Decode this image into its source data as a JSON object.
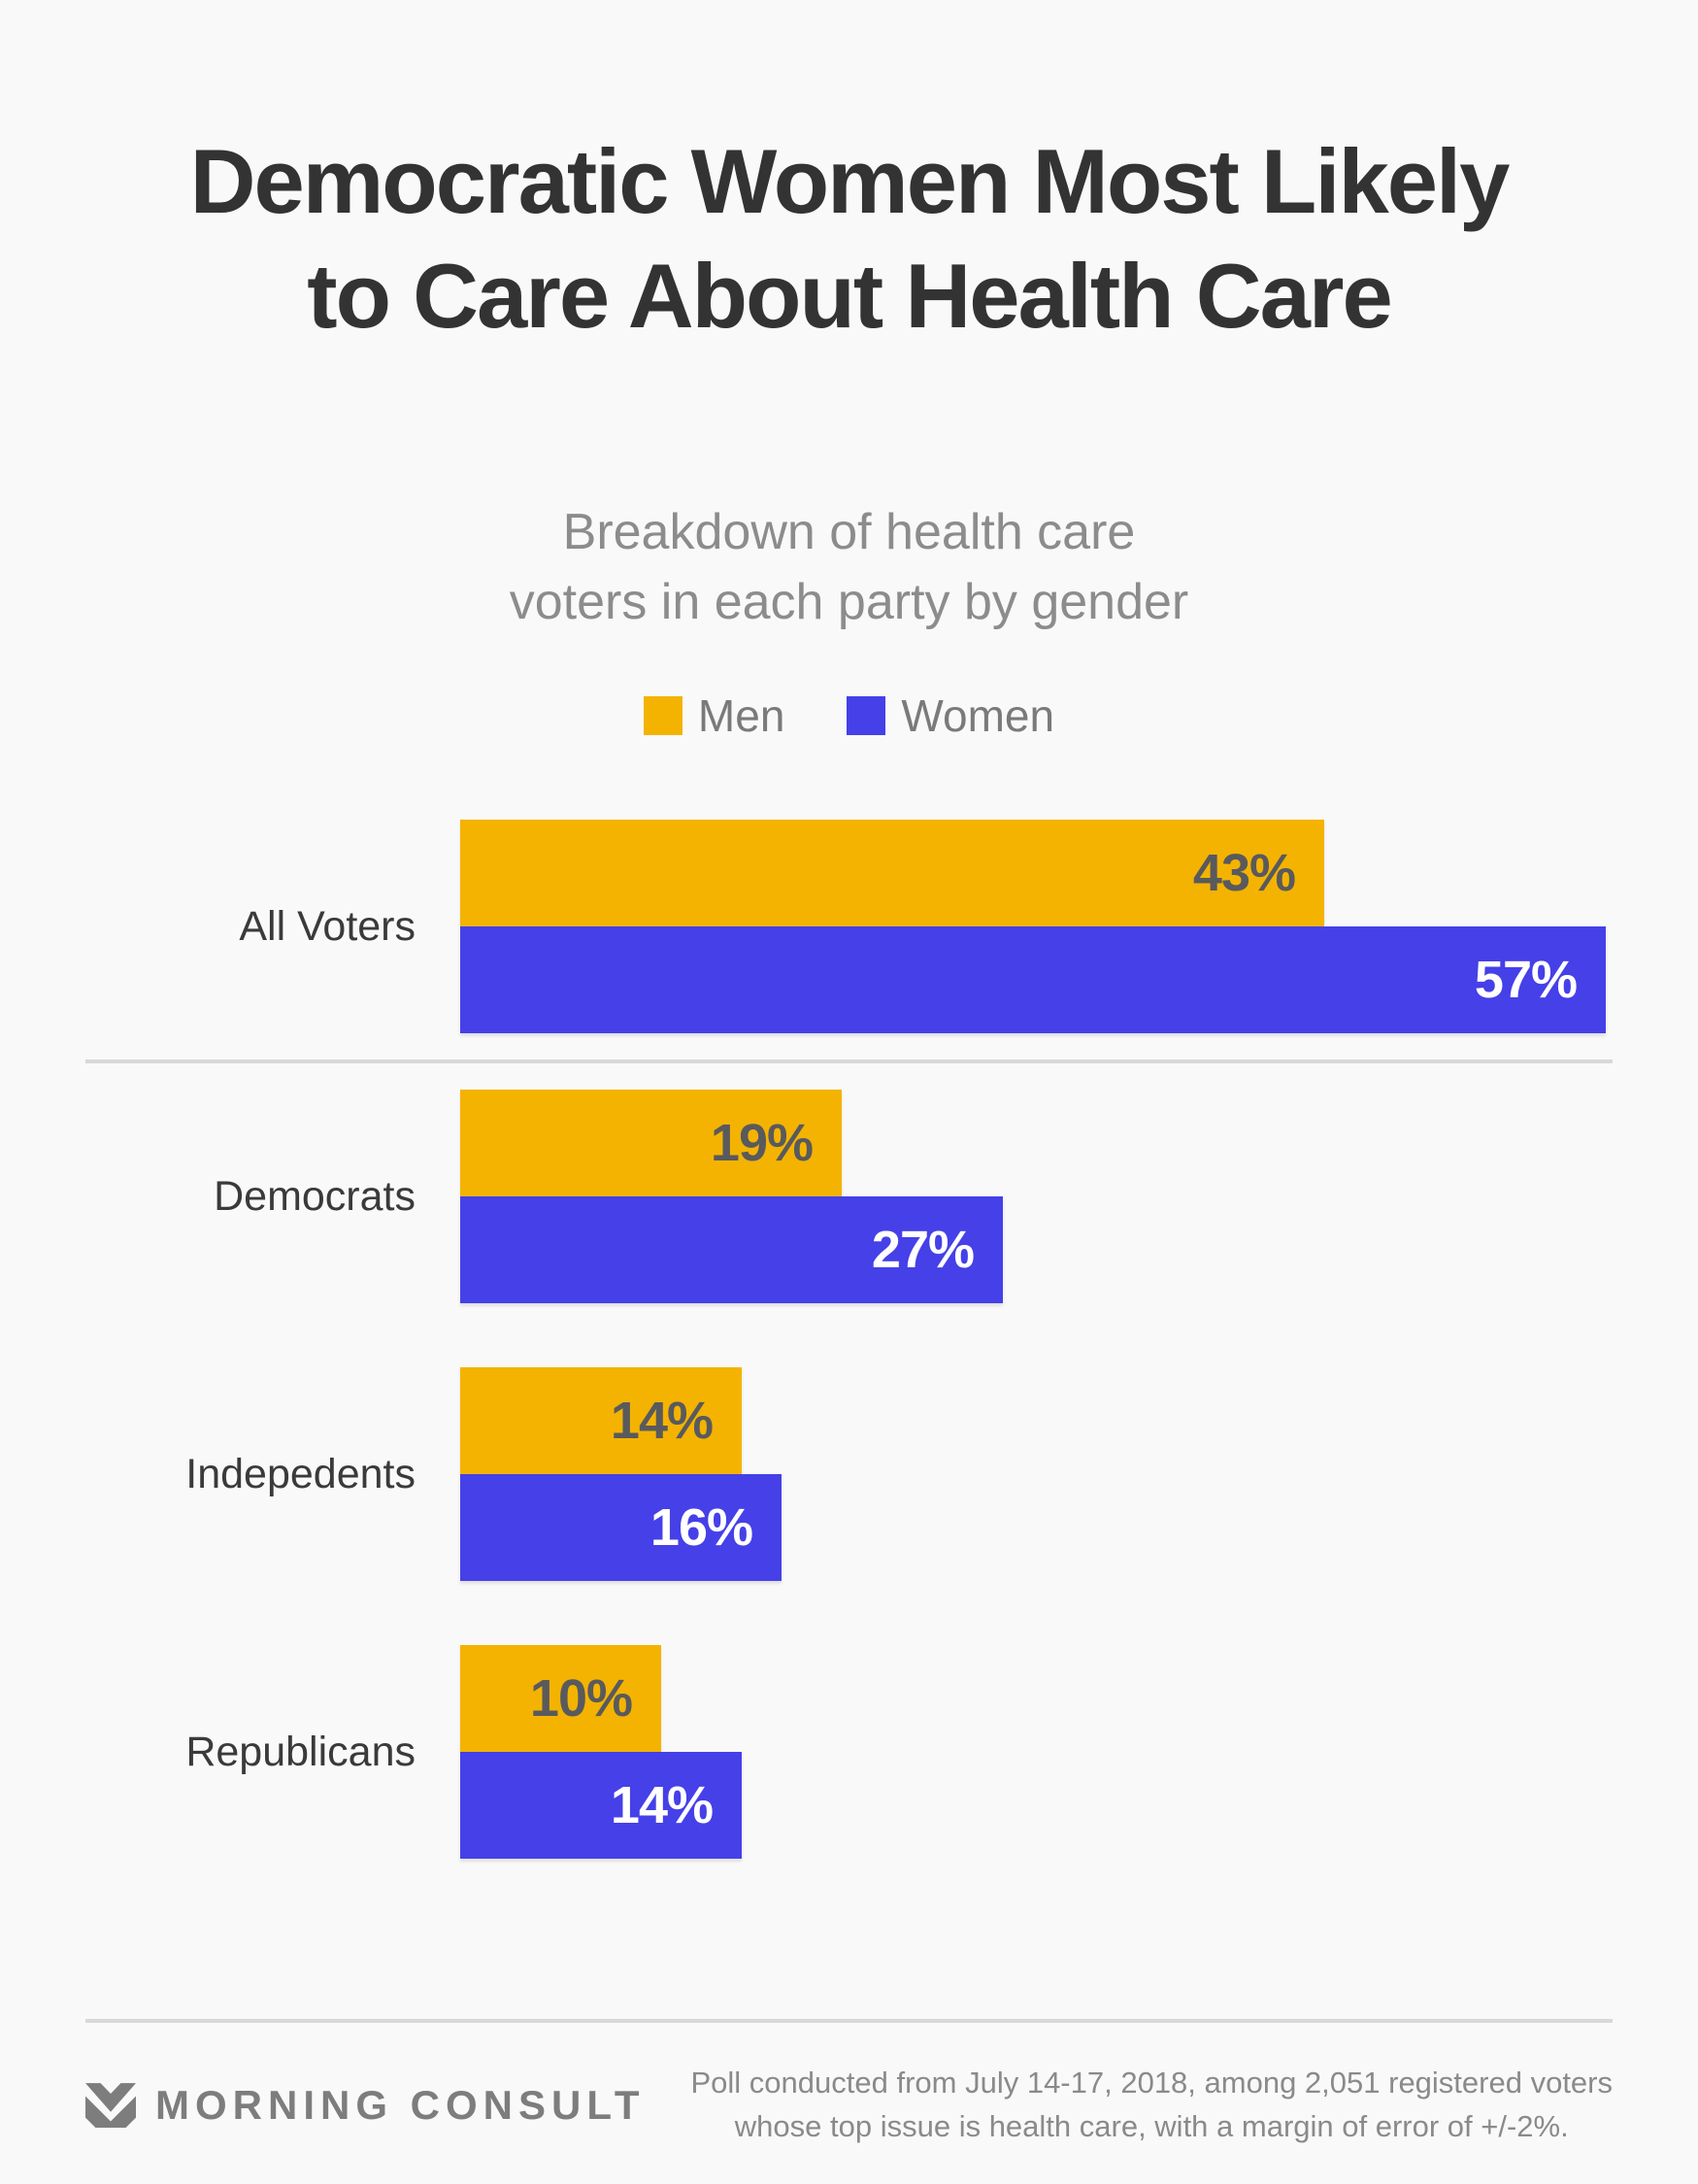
{
  "title": {
    "lines": [
      "Democratic Women Most Likely",
      "to Care About Health Care"
    ]
  },
  "subtitle": {
    "lines": [
      "Breakdown of health care",
      "voters in each party by gender"
    ]
  },
  "legend": {
    "items": [
      {
        "label": "Men",
        "color": "#F4B301"
      },
      {
        "label": "Women",
        "color": "#4540E8"
      }
    ]
  },
  "chart_data": {
    "type": "bar",
    "orientation": "horizontal",
    "title": "Breakdown of health care voters in each party by gender",
    "categories": [
      "All Voters",
      "Democrats",
      "Indepedents",
      "Republicans"
    ],
    "series": [
      {
        "name": "Men",
        "color": "#F4B301",
        "label_color": "#595A5D",
        "values": [
          43,
          19,
          14,
          10
        ]
      },
      {
        "name": "Women",
        "color": "#4540E8",
        "label_color": "#FFFFFF",
        "values": [
          57,
          27,
          16,
          14
        ]
      }
    ],
    "value_suffix": "%",
    "xlim": [
      0,
      57
    ],
    "grid": false,
    "legend_position": "top",
    "bar_labels": "inside-end"
  },
  "footer": {
    "logo_text": "MORNING CONSULT",
    "note_lines": [
      "Poll conducted from July 14-17, 2018, among 2,051 registered voters",
      "whose top issue is health care, with a margin of error of +/-2%."
    ]
  },
  "colors": {
    "background": "#F9F9F9",
    "title_text": "#333333",
    "subtitle_text": "#8C8C8C",
    "category_text": "#3A3A3A",
    "divider": "#D8D8D8",
    "footer_text": "#8A8A8A",
    "logo": "#7D7D7D"
  }
}
